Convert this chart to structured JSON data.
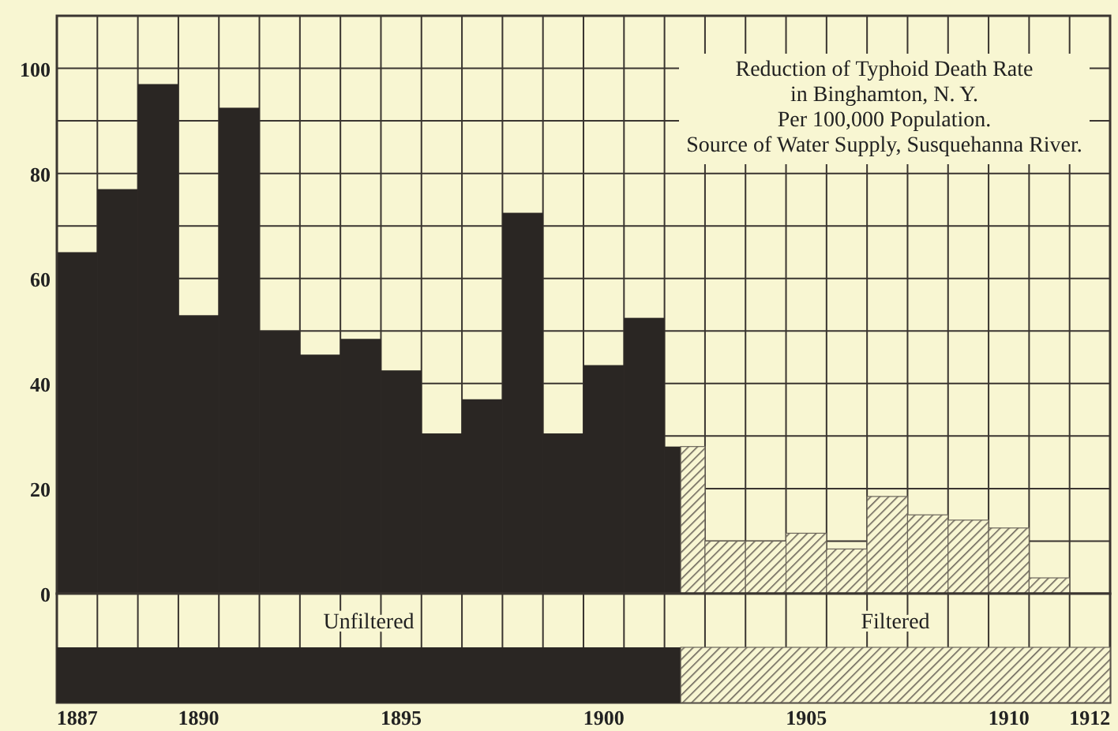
{
  "chart_data": {
    "type": "bar",
    "title": "Reduction of Typhoid Death Rate\nin Binghamton, N. Y.",
    "subtitle": "Per 100,000  Population.\nSource of Water Supply, Susquehanna River.",
    "categories": [
      "1887",
      null,
      null,
      "1890",
      null,
      null,
      null,
      null,
      "1895",
      null,
      null,
      null,
      null,
      "1900",
      null,
      null,
      null,
      null,
      "1905",
      null,
      null,
      null,
      null,
      "1910",
      null,
      "1912"
    ],
    "series": [
      {
        "name": "Unfiltered",
        "color": "#2a2623",
        "values": [
          65,
          77,
          97,
          53,
          92.5,
          50,
          45.5,
          48.5,
          42.5,
          30.5,
          37,
          72.5,
          30.5,
          43.5,
          52.5,
          28,
          null,
          null,
          null,
          null,
          null,
          null,
          null,
          null,
          null,
          null
        ]
      },
      {
        "name": "Filtered",
        "color": "#6b655a",
        "values": [
          null,
          null,
          null,
          null,
          null,
          null,
          null,
          null,
          null,
          null,
          null,
          null,
          null,
          null,
          null,
          28,
          10,
          10,
          11.5,
          8.5,
          18.5,
          15,
          14,
          12.5,
          3,
          null
        ]
      }
    ],
    "ylim": [
      0,
      110
    ],
    "yticks": [
      0,
      {
        "value": 10,
        "label": null
      },
      20,
      {
        "value": 30,
        "label": null
      },
      40,
      {
        "value": 50,
        "label": null
      },
      60,
      {
        "value": 70,
        "label": null
      },
      80,
      {
        "value": 90,
        "label": null
      },
      100,
      {
        "value": 110,
        "label": null
      }
    ],
    "grid": true,
    "legend": "bottom"
  }
}
